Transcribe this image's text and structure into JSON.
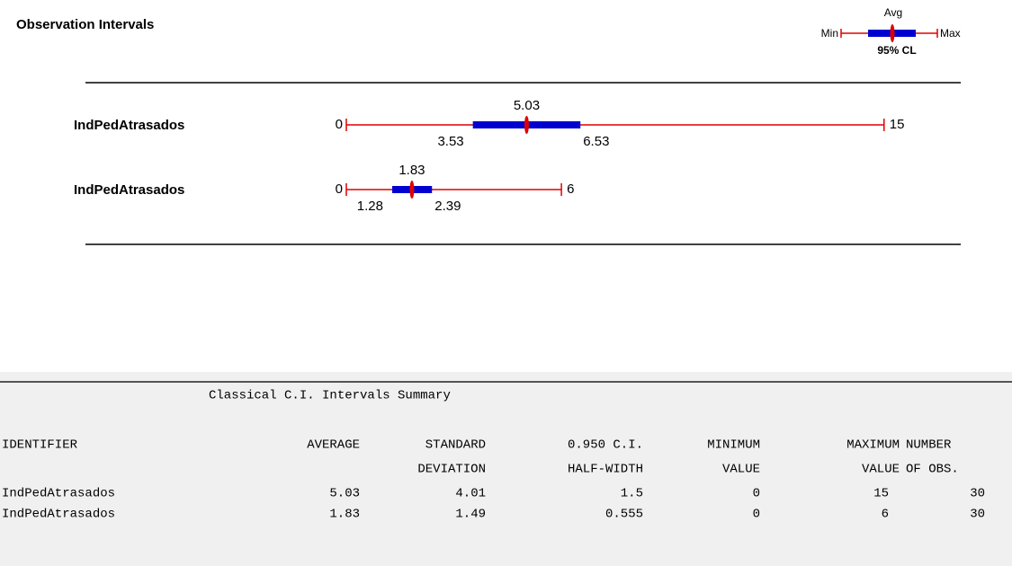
{
  "chart": {
    "title": "Observation Intervals",
    "legend": {
      "avg": "Avg",
      "min": "Min",
      "max": "Max",
      "cl": "95% CL"
    },
    "rows": [
      {
        "label": "IndPedAtrasados",
        "min": 0,
        "max": 15,
        "avg": 5.03,
        "ci_low": 3.53,
        "ci_high": 6.53
      },
      {
        "label": "IndPedAtrasados",
        "min": 0,
        "max": 6,
        "avg": 1.83,
        "ci_low": 1.28,
        "ci_high": 2.39
      }
    ]
  },
  "table": {
    "title": "Classical C.I. Intervals Summary",
    "columns": [
      {
        "lines": [
          "IDENTIFIER"
        ]
      },
      {
        "lines": [
          "AVERAGE"
        ]
      },
      {
        "lines": [
          "STANDARD",
          "DEVIATION"
        ]
      },
      {
        "lines": [
          "0.950 C.I.",
          "HALF-WIDTH"
        ]
      },
      {
        "lines": [
          "MINIMUM",
          "VALUE"
        ]
      },
      {
        "lines": [
          "MAXIMUM",
          "VALUE"
        ]
      },
      {
        "lines": [
          "NUMBER",
          "OF OBS."
        ]
      }
    ],
    "rows": [
      [
        "IndPedAtrasados",
        5.03,
        4.01,
        1.5,
        0,
        15,
        30
      ],
      [
        "IndPedAtrasados",
        1.83,
        1.49,
        0.555,
        0,
        6,
        30
      ]
    ]
  }
}
